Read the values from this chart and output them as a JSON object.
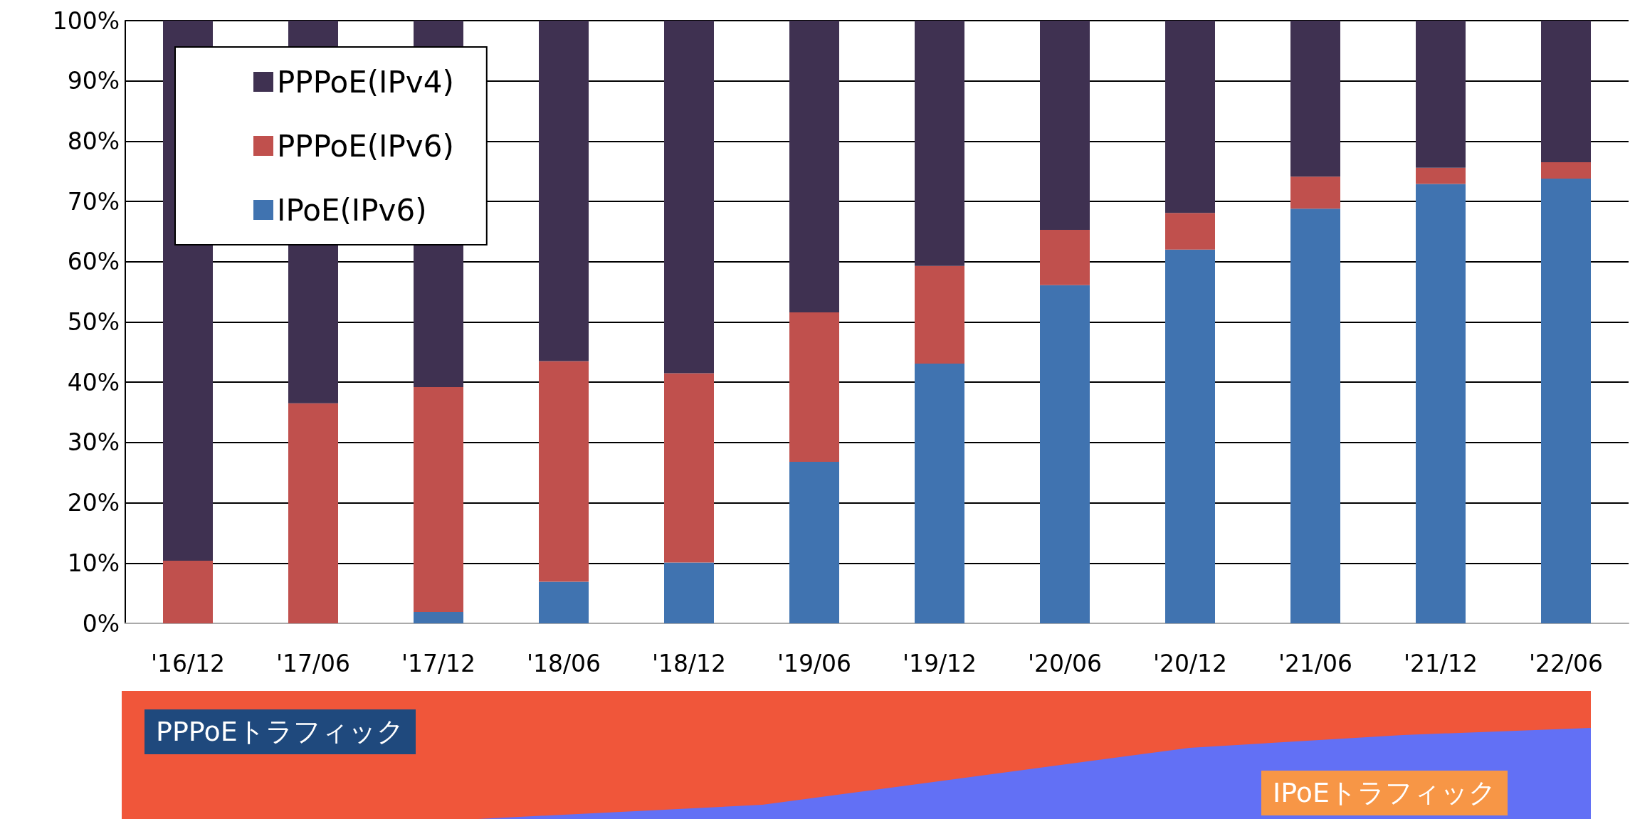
{
  "chart_data": {
    "type": "bar",
    "stacked": true,
    "categories": [
      "'16/12",
      "'17/06",
      "'17/12",
      "'18/06",
      "'18/12",
      "'19/06",
      "'19/12",
      "'20/06",
      "'20/12",
      "'21/06",
      "'21/12",
      "'22/06"
    ],
    "series": [
      {
        "name": "IPoE(IPv6)",
        "color": "#4073b0",
        "values": [
          0,
          0,
          1.9,
          6.9,
          10.1,
          26.8,
          43.1,
          56.1,
          62.0,
          68.8,
          72.9,
          73.8
        ]
      },
      {
        "name": "PPPoE(IPv6)",
        "color": "#c0504d",
        "values": [
          10.4,
          36.5,
          37.3,
          36.6,
          31.4,
          24.8,
          16.2,
          9.2,
          6.1,
          5.3,
          2.7,
          2.7
        ]
      },
      {
        "name": "PPPoE(IPv4)",
        "color": "#3f3151",
        "values": [
          89.6,
          63.5,
          60.8,
          56.5,
          58.5,
          48.4,
          40.7,
          34.7,
          31.9,
          25.9,
          24.4,
          23.5
        ]
      }
    ],
    "ylim": [
      0,
      100
    ],
    "yticks": [
      {
        "value": 0,
        "label": "0%"
      },
      {
        "value": 10,
        "label": "10%"
      },
      {
        "value": 20,
        "label": "20%"
      },
      {
        "value": 30,
        "label": "30%"
      },
      {
        "value": 40,
        "label": "40%"
      },
      {
        "value": 50,
        "label": "50%"
      },
      {
        "value": 60,
        "label": "60%"
      },
      {
        "value": 70,
        "label": "70%"
      },
      {
        "value": 80,
        "label": "80%"
      },
      {
        "value": 90,
        "label": "90%"
      },
      {
        "value": 100,
        "label": "100%"
      }
    ],
    "grid": "y",
    "legend": "top left",
    "annotations": [
      "PPPoEトラフィック",
      "IPoEトラフィック"
    ]
  }
}
